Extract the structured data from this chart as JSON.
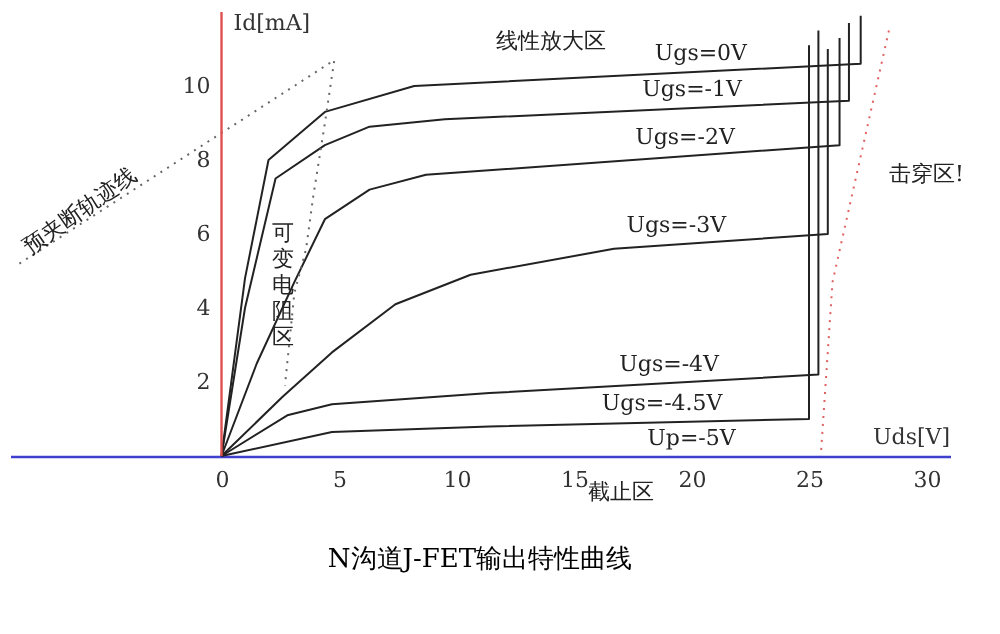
{
  "chart_data": {
    "type": "line",
    "title": "N沟道J-FET输出特性曲线",
    "xlabel": "Uds[V]",
    "ylabel": "Id[mA]",
    "xlim": [
      -9,
      31
    ],
    "ylim": [
      0,
      12
    ],
    "xticks": [
      0,
      5,
      10,
      15,
      20,
      25,
      30
    ],
    "yticks": [
      2,
      4,
      6,
      8,
      10
    ],
    "grid": false,
    "marker": "none",
    "line_style": "solid",
    "series": [
      {
        "name": "Ugs=0V",
        "color": "#222222",
        "x": [
          0,
          1.0,
          2.0,
          4.4,
          8.2,
          27.2,
          27.2
        ],
        "values": [
          0,
          4.8,
          8.0,
          9.3,
          10.0,
          10.6,
          11.9
        ]
      },
      {
        "name": "Ugs=-1V",
        "color": "#222222",
        "x": [
          0,
          1.0,
          2.3,
          4.4,
          6.3,
          9.5,
          26.7,
          26.7
        ],
        "values": [
          0,
          4.0,
          7.5,
          8.4,
          8.9,
          9.1,
          9.6,
          11.7
        ]
      },
      {
        "name": "Ugs=-2V",
        "color": "#222222",
        "x": [
          0,
          1.5,
          3.1,
          4.4,
          6.3,
          8.7,
          26.3,
          26.3
        ],
        "values": [
          0,
          2.5,
          4.7,
          6.4,
          7.2,
          7.6,
          8.4,
          11.3
        ]
      },
      {
        "name": "Ugs=-3V",
        "color": "#222222",
        "x": [
          0,
          2.6,
          4.7,
          7.4,
          10.6,
          16.7,
          25.8,
          25.8
        ],
        "values": [
          0,
          1.6,
          2.8,
          4.1,
          4.9,
          5.6,
          6.0,
          11.0
        ]
      },
      {
        "name": "Ugs=-4V",
        "color": "#222222",
        "x": [
          0,
          2.8,
          4.7,
          11.4,
          25.4,
          25.4
        ],
        "values": [
          0,
          1.1,
          1.4,
          1.7,
          2.2,
          11.5
        ]
      },
      {
        "name": "Ugs=-4.5V",
        "color": "#222222",
        "x": [
          0,
          4.7,
          11.4,
          25.0,
          25.0
        ],
        "values": [
          0,
          0.65,
          0.8,
          1.0,
          11.1
        ]
      },
      {
        "color": "#666666",
        "line_style": "dotted",
        "x": [
          -8.6,
          4.8,
          4.4,
          3.9,
          3.6,
          3.1,
          2.7
        ],
        "values": [
          5.2,
          10.7,
          9.0,
          7.0,
          5.6,
          4.4,
          1.9
        ]
      },
      {
        "color": "#e06060",
        "line_style": "dotted",
        "x": [
          28.4,
          26.0,
          25.5
        ],
        "values": [
          11.5,
          4.7,
          0
        ]
      }
    ],
    "annotations": [
      "预夹断轨迹线",
      "可变电阻区",
      "线性放大区",
      "Up=-5V",
      "击穿区!",
      "截止区"
    ]
  }
}
